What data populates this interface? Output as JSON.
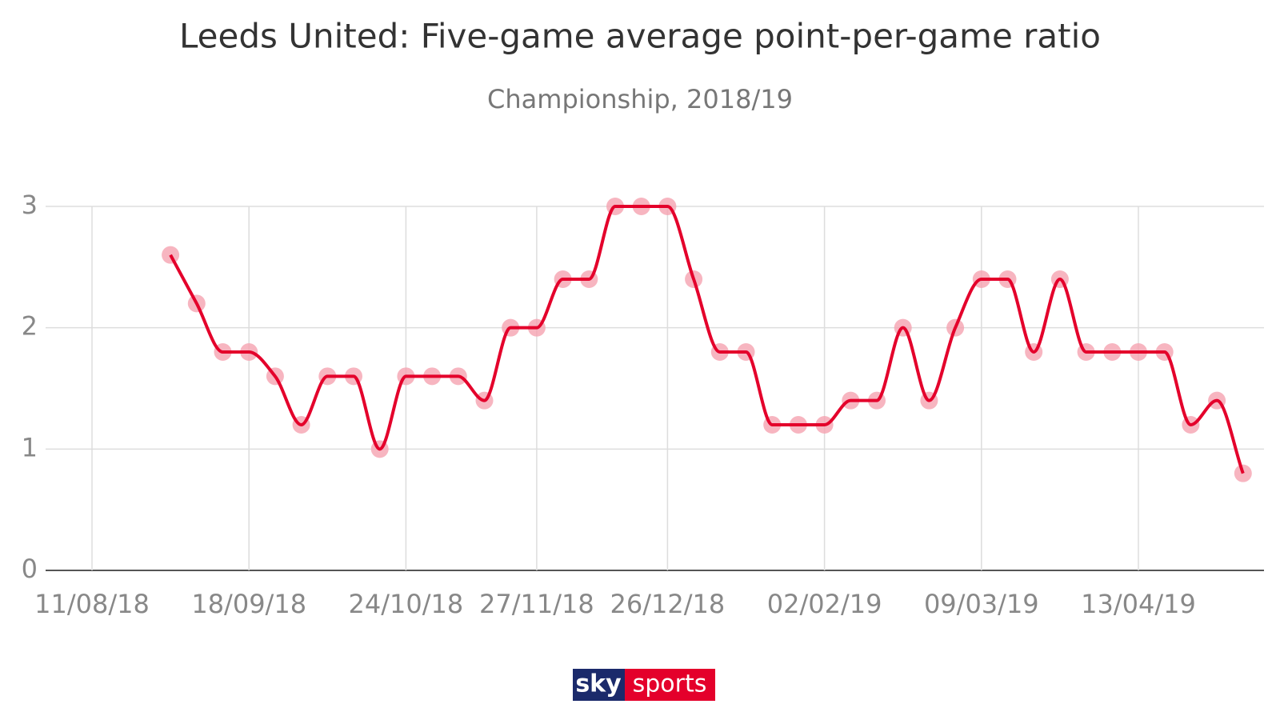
{
  "chart_data": {
    "type": "line",
    "title": "Leeds United: Five-game average point-per-game ratio",
    "subtitle": "Championship, 2018/19",
    "categories": [
      "11/08/18",
      null,
      null,
      null,
      null,
      null,
      "18/09/18",
      null,
      null,
      null,
      null,
      null,
      "24/10/18",
      null,
      null,
      null,
      null,
      "27/11/18",
      null,
      null,
      null,
      null,
      "26/12/18",
      null,
      null,
      null,
      null,
      null,
      "02/02/19",
      null,
      null,
      null,
      null,
      null,
      "09/03/19",
      null,
      null,
      null,
      null,
      null,
      "13/04/19",
      null,
      null,
      null,
      null
    ],
    "values": [
      null,
      null,
      null,
      2.6,
      2.2,
      1.8,
      1.8,
      1.6,
      1.2,
      1.6,
      1.6,
      1.0,
      1.6,
      1.6,
      1.6,
      1.4,
      2.0,
      2.0,
      2.4,
      2.4,
      3,
      3,
      3,
      2.4,
      1.8,
      1.8,
      1.2,
      1.2,
      1.2,
      1.4,
      1.4,
      2.0,
      1.4,
      2.0,
      2.4,
      2.4,
      1.8,
      2.4,
      1.8,
      1.8,
      1.8,
      1.8,
      1.2,
      1.4,
      0.8
    ],
    "color": "#e4002b",
    "marker_color": "#f5a3b0",
    "ylim": [
      0,
      3
    ],
    "yticks": [
      0,
      1,
      2,
      3
    ],
    "grid": true,
    "logo": [
      "sky",
      "sports"
    ]
  }
}
